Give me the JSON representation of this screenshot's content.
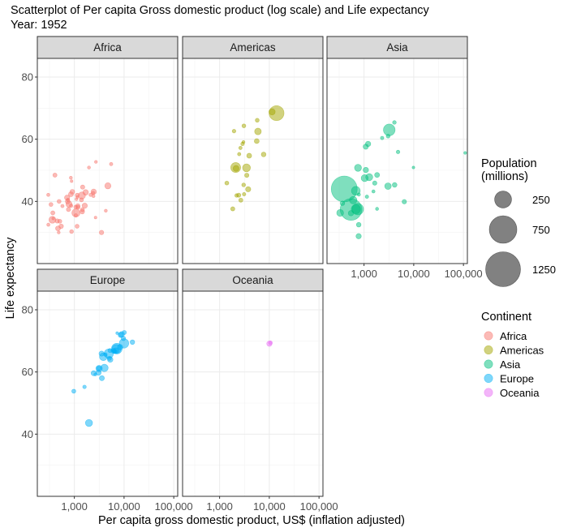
{
  "chart_data": {
    "type": "scatter",
    "title": "Scatterplot of Per capita Gross domestic product (log scale) and Life expectancy",
    "subtitle": "Year: 1952",
    "xlabel": "Per capita gross domestic product, US$ (inflation adjusted)",
    "ylabel": "Life expectancy",
    "x_scale": "log10",
    "xlim": [
      180,
      120000
    ],
    "ylim": [
      20,
      86
    ],
    "x_ticks": [
      1000,
      10000,
      100000
    ],
    "x_tick_labels": [
      "1,000",
      "10,000",
      "100,000"
    ],
    "y_ticks": [
      40,
      60,
      80
    ],
    "y_tick_labels": [
      "40",
      "60",
      "80"
    ],
    "grid": true,
    "facets": [
      "Africa",
      "Americas",
      "Asia",
      "Europe",
      "Oceania"
    ],
    "colors": {
      "Africa": "#F8766D",
      "Americas": "#A3A500",
      "Asia": "#00BF7D",
      "Europe": "#00B0F6",
      "Oceania": "#E76BF3"
    },
    "size_legend": {
      "title": "Population\n(millions)",
      "values": [
        250,
        750,
        1250
      ],
      "labels": [
        "250",
        "750",
        "1250"
      ]
    },
    "color_legend": {
      "title": "Continent",
      "labels": [
        "Africa",
        "Americas",
        "Asia",
        "Europe",
        "Oceania"
      ]
    },
    "series": [
      {
        "name": "Africa",
        "points": [
          [
            2449,
            43.1,
            9.3
          ],
          [
            3521,
            30.0,
            4.2
          ],
          [
            1063,
            38.2,
            1.7
          ],
          [
            851,
            47.6,
            0.4
          ],
          [
            543,
            32.0,
            4.5
          ],
          [
            339,
            39.0,
            2.4
          ],
          [
            1173,
            38.5,
            5.0
          ],
          [
            1071,
            35.5,
            1.3
          ],
          [
            1179,
            38.1,
            2.7
          ],
          [
            1103,
            40.7,
            0.2
          ],
          [
            781,
            39.1,
            14.1
          ],
          [
            2126,
            42.1,
            0.9
          ],
          [
            1389,
            40.5,
            2.9
          ],
          [
            2670,
            34.8,
            0.1
          ],
          [
            1419,
            41.9,
            22.2
          ],
          [
            376,
            34.5,
            0.2
          ],
          [
            362,
            34.1,
            20.9
          ],
          [
            4293,
            37.0,
            0.4
          ],
          [
            485,
            30.0,
            0.3
          ],
          [
            911,
            43.1,
            5.6
          ],
          [
            510,
            33.6,
            2.7
          ],
          [
            300,
            32.5,
            0.6
          ],
          [
            853,
            42.3,
            6.5
          ],
          [
            299,
            42.1,
            0.7
          ],
          [
            576,
            38.5,
            0.9
          ],
          [
            2388,
            42.7,
            1.0
          ],
          [
            1443,
            36.7,
            4.8
          ],
          [
            369,
            36.3,
            2.9
          ],
          [
            452,
            33.7,
            3.8
          ],
          [
            743,
            40.5,
            1.0
          ],
          [
            1968,
            50.9,
            0.5
          ],
          [
            1688,
            42.9,
            9.9
          ],
          [
            469,
            31.3,
            6.4
          ],
          [
            2424,
            41.7,
            0.5
          ],
          [
            762,
            37.4,
            3.4
          ],
          [
            1077,
            36.3,
            33.1
          ],
          [
            2718,
            52.7,
            0.3
          ],
          [
            493,
            40.0,
            2.5
          ],
          [
            880,
            46.5,
            0.1
          ],
          [
            1451,
            37.3,
            2.8
          ],
          [
            879,
            30.3,
            2.1
          ],
          [
            1136,
            32.0,
            2.5
          ],
          [
            4725,
            45.0,
            14.3
          ],
          [
            1616,
            38.6,
            8.5
          ],
          [
            1148,
            41.4,
            0.3
          ],
          [
            716,
            41.2,
            8.3
          ],
          [
            860,
            38.6,
            1.2
          ],
          [
            1468,
            44.6,
            3.6
          ],
          [
            735,
            39.98,
            5.8
          ],
          [
            1147,
            42.0,
            2.7
          ],
          [
            407,
            48.45,
            3.1
          ],
          [
            5500,
            52.0,
            1.0
          ]
        ]
      },
      {
        "name": "Americas",
        "points": [
          [
            5911,
            62.5,
            17.9
          ],
          [
            2677,
            40.4,
            2.9
          ],
          [
            2109,
            50.9,
            56.6
          ],
          [
            11367,
            68.8,
            14.8
          ],
          [
            3940,
            54.7,
            6.4
          ],
          [
            2144,
            50.6,
            12.4
          ],
          [
            2627,
            57.2,
            0.9
          ],
          [
            5587,
            59.4,
            6.0
          ],
          [
            1398,
            45.9,
            2.5
          ],
          [
            3522,
            48.4,
            3.5
          ],
          [
            3048,
            45.3,
            2.0
          ],
          [
            2428,
            42.0,
            3.1
          ],
          [
            1840,
            37.6,
            3.2
          ],
          [
            2195,
            41.9,
            1.5
          ],
          [
            2898,
            58.5,
            1.4
          ],
          [
            3478,
            50.8,
            30.1
          ],
          [
            3112,
            42.3,
            1.2
          ],
          [
            2480,
            55.2,
            0.9
          ],
          [
            1952,
            62.6,
            1.6
          ],
          [
            3759,
            43.9,
            8.0
          ],
          [
            3082,
            64.3,
            2.2
          ],
          [
            3024,
            59.1,
            0.3
          ],
          [
            13990,
            68.4,
            157.6
          ],
          [
            5717,
            66.1,
            2.3
          ],
          [
            7690,
            55.1,
            5.4
          ]
        ]
      },
      {
        "name": "Asia",
        "points": [
          [
            779,
            28.8,
            8.4
          ],
          [
            9867,
            50.9,
            0.1
          ],
          [
            684,
            37.5,
            46.9
          ],
          [
            368,
            39.4,
            4.7
          ],
          [
            400,
            44.0,
            556.3
          ],
          [
            3054,
            61.0,
            2.1
          ],
          [
            547,
            37.4,
            372.0
          ],
          [
            750,
            37.5,
            82.1
          ],
          [
            3035,
            44.9,
            17.3
          ],
          [
            4130,
            45.3,
            5.4
          ],
          [
            4086,
            65.4,
            1.6
          ],
          [
            3217,
            63.0,
            86.5
          ],
          [
            1547,
            43.2,
            0.6
          ],
          [
            1088,
            50.1,
            8.9
          ],
          [
            1031,
            47.5,
            20.9
          ],
          [
            108382,
            55.6,
            0.2
          ],
          [
            4835,
            55.9,
            1.4
          ],
          [
            1831,
            48.5,
            6.7
          ],
          [
            786,
            42.2,
            0.8
          ],
          [
            331,
            36.3,
            20.1
          ],
          [
            546,
            36.2,
            9.2
          ],
          [
            1828,
            37.6,
            0.5
          ],
          [
            684,
            43.4,
            41.3
          ],
          [
            1272,
            47.8,
            22.4
          ],
          [
            6460,
            39.9,
            4.0
          ],
          [
            2315,
            60.4,
            1.1
          ],
          [
            1083,
            57.6,
            7.98
          ],
          [
            1644,
            45.9,
            3.7
          ],
          [
            1207,
            58.5,
            8.6
          ],
          [
            757,
            50.8,
            21.3
          ],
          [
            605,
            40.4,
            26.2
          ],
          [
            782,
            32.5,
            4.96
          ],
          [
            1143,
            41.5,
            1.1
          ]
        ]
      },
      {
        "name": "Europe",
        "points": [
          [
            1601,
            55.2,
            1.3
          ],
          [
            6137,
            66.8,
            6.9
          ],
          [
            8343,
            68.0,
            8.7
          ],
          [
            974,
            53.8,
            2.8
          ],
          [
            2444,
            59.6,
            7.3
          ],
          [
            3119,
            61.2,
            3.9
          ],
          [
            6877,
            66.9,
            9.1
          ],
          [
            9692,
            70.8,
            4.3
          ],
          [
            6425,
            66.6,
            4.1
          ],
          [
            7030,
            67.4,
            42.5
          ],
          [
            7144,
            67.5,
            69.1
          ],
          [
            3531,
            65.9,
            7.7
          ],
          [
            5264,
            64.0,
            9.5
          ],
          [
            7268,
            72.5,
            0.1
          ],
          [
            5210,
            66.9,
            3.0
          ],
          [
            4931,
            65.9,
            47.7
          ],
          [
            2648,
            59.2,
            0.4
          ],
          [
            8942,
            72.1,
            10.4
          ],
          [
            10095,
            72.7,
            3.3
          ],
          [
            4029,
            61.3,
            25.7
          ],
          [
            3068,
            59.8,
            8.5
          ],
          [
            3145,
            61.1,
            16.6
          ],
          [
            3581,
            58.0,
            6.9
          ],
          [
            5074,
            64.4,
            3.6
          ],
          [
            4215,
            65.6,
            1.5
          ],
          [
            3834,
            64.9,
            28.5
          ],
          [
            8528,
            71.9,
            7.1
          ],
          [
            14734,
            69.6,
            4.8
          ],
          [
            1969,
            43.6,
            22.2
          ],
          [
            9980,
            69.2,
            50.4
          ]
        ]
      },
      {
        "name": "Oceania",
        "points": [
          [
            10040,
            69.1,
            8.7
          ],
          [
            10557,
            69.4,
            1.99
          ]
        ]
      }
    ]
  }
}
